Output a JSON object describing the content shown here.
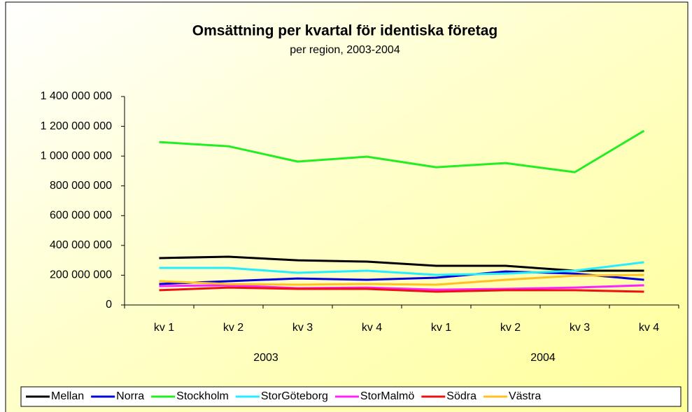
{
  "chart_data": {
    "type": "line",
    "title": "Omsättning per kvartal för identiska företag",
    "subtitle": "per region, 2003-2004",
    "categories": [
      "kv 1",
      "kv 2",
      "kv 3",
      "kv 4",
      "kv 1",
      "kv 2",
      "kv 3",
      "kv 4"
    ],
    "category_groups": [
      "2003",
      "2004"
    ],
    "ylim": [
      0,
      1400000000
    ],
    "yticks": [
      0,
      {
        "value": 200000000,
        "label": "200 000 000"
      },
      {
        "value": 400000000,
        "label": "400 000 000"
      },
      {
        "value": 600000000,
        "label": "600 000 000"
      },
      {
        "value": 800000000,
        "label": "800 000 000"
      },
      {
        "value": 1000000000,
        "label": "1 000 000 000"
      },
      {
        "value": 1200000000,
        "label": "1 200 000 000"
      },
      {
        "value": 1400000000,
        "label": "1 400 000 000"
      }
    ],
    "grid": false,
    "legend": "bottom",
    "series": [
      {
        "name": "Mellan",
        "color": "#000000",
        "values": [
          315000000,
          324000000,
          300000000,
          291000000,
          263000000,
          263000000,
          230000000,
          230000000
        ]
      },
      {
        "name": "Norra",
        "color": "#0000dd",
        "values": [
          141000000,
          160000000,
          178000000,
          169000000,
          183000000,
          225000000,
          211000000,
          169000000
        ]
      },
      {
        "name": "Stockholm",
        "color": "#22ee22",
        "values": [
          1094000000,
          1066000000,
          963000000,
          996000000,
          925000000,
          953000000,
          892000000,
          1170000000
        ]
      },
      {
        "name": "StorGöteborg",
        "color": "#22eeff",
        "values": [
          249000000,
          249000000,
          216000000,
          230000000,
          202000000,
          211000000,
          230000000,
          287000000
        ]
      },
      {
        "name": "StorMalmö",
        "color": "#ff22ff",
        "values": [
          127000000,
          132000000,
          113000000,
          117000000,
          103000000,
          108000000,
          117000000,
          132000000
        ]
      },
      {
        "name": "Södra",
        "color": "#ee1111",
        "values": [
          99000000,
          117000000,
          108000000,
          108000000,
          89000000,
          99000000,
          99000000,
          89000000
        ]
      },
      {
        "name": "Västra",
        "color": "#ffc020",
        "values": [
          160000000,
          141000000,
          136000000,
          141000000,
          136000000,
          169000000,
          197000000,
          202000000
        ]
      }
    ]
  }
}
